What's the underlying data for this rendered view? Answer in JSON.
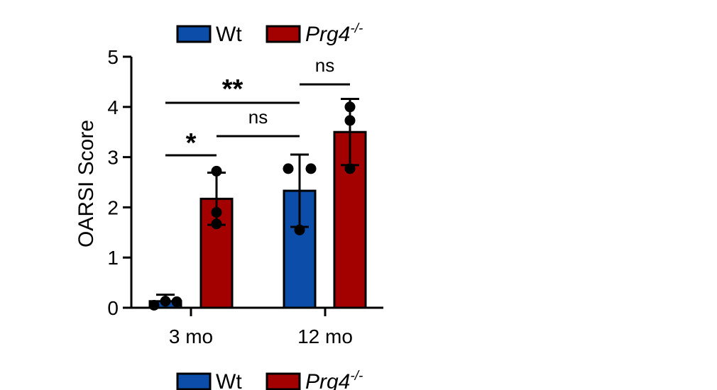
{
  "chart_data": {
    "type": "bar",
    "title": "",
    "xlabel": "",
    "ylabel": "OARSI Score",
    "ylim": [
      0,
      5
    ],
    "yticks": [
      "0",
      "1",
      "2",
      "3",
      "4",
      "5"
    ],
    "categories": [
      "3 mo",
      "12 mo"
    ],
    "series": [
      {
        "name": "Wt",
        "color": "#0B4DA8",
        "values": [
          0.13,
          2.33
        ],
        "error": [
          0.13,
          0.72
        ],
        "points": [
          [
            0.05,
            0.13,
            0.12
          ],
          [
            2.77,
            1.55,
            2.77
          ]
        ]
      },
      {
        "name": "Prg4",
        "name_superscript": "-/-",
        "color": "#A30000",
        "values": [
          2.17,
          3.5
        ],
        "error": [
          0.52,
          0.66
        ],
        "points": [
          [
            2.72,
            1.9,
            1.67
          ],
          [
            4.0,
            3.73,
            2.77
          ]
        ]
      }
    ],
    "annotations": [
      {
        "label": "**",
        "from": "3 mo / Wt",
        "to": "12 mo / Wt"
      },
      {
        "label": "ns",
        "from": "12 mo / Wt",
        "to": "12 mo / Prg4"
      },
      {
        "label": "*",
        "from": "3 mo / Wt",
        "to": "3 mo / Prg4"
      },
      {
        "label": "ns",
        "from": "3 mo / Prg4",
        "to": "12 mo / Wt"
      }
    ],
    "legend": "top"
  }
}
